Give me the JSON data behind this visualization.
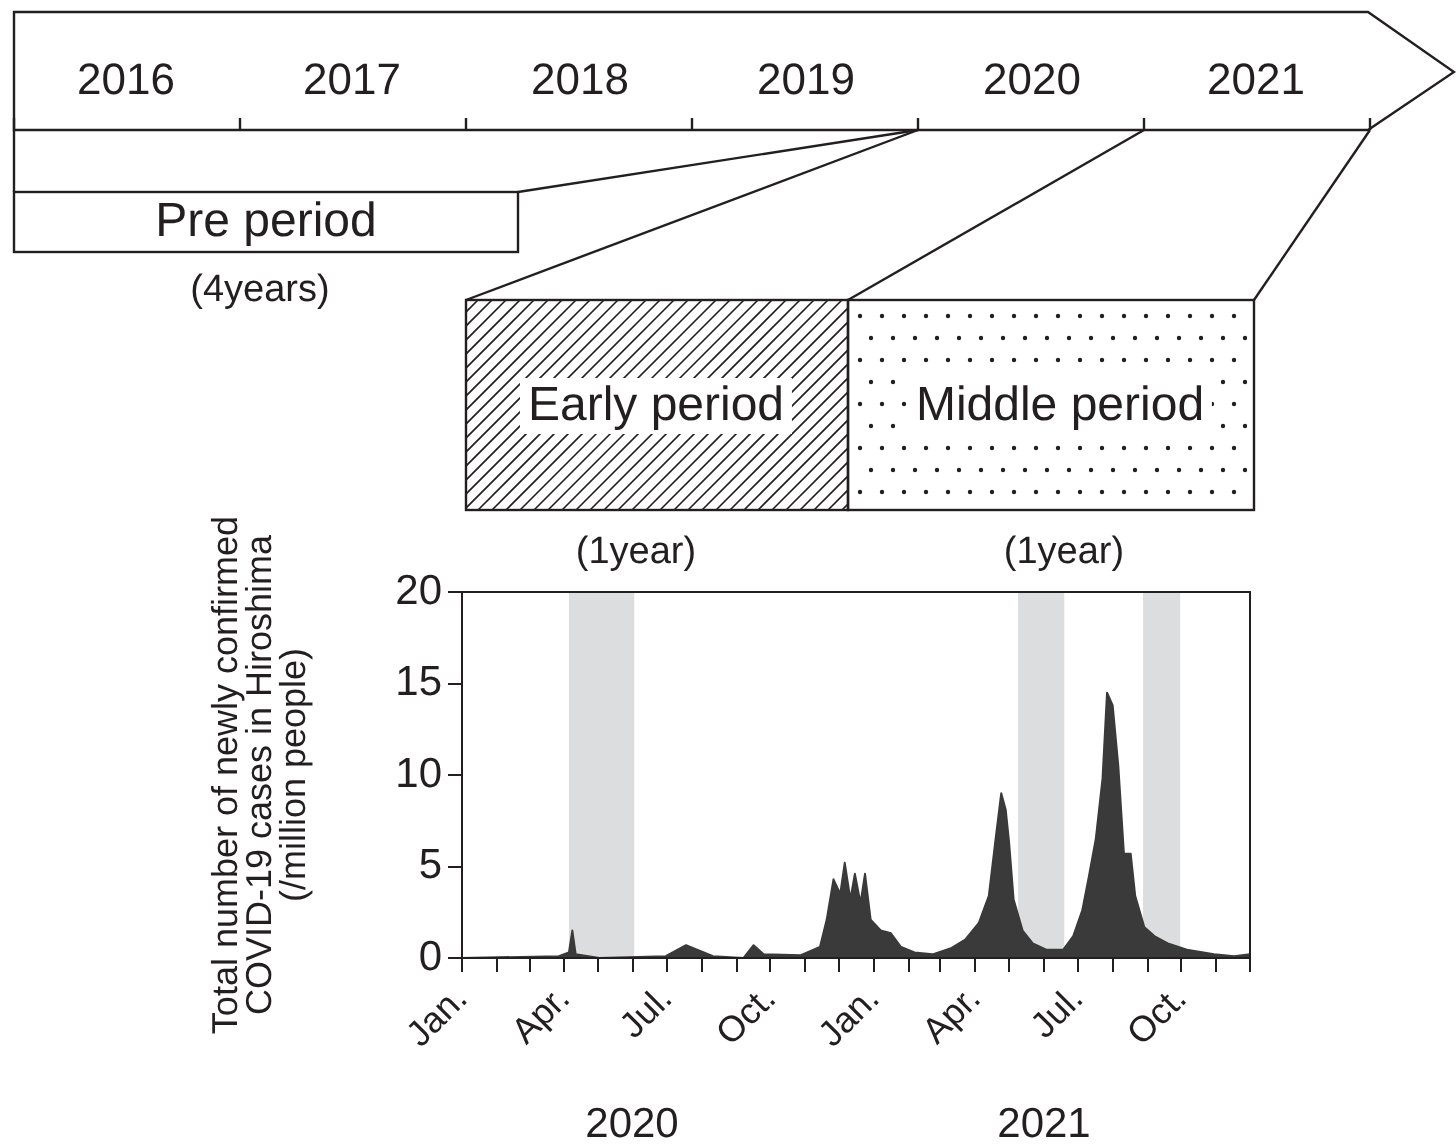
{
  "chart_data": {
    "type": "area",
    "ylabel": "Total number of newly confirmed\nCOVID-19 cases in Hiroshima\n(/million people)",
    "annotations": [
      "2016",
      "2017",
      "2018",
      "2019",
      "2020",
      "2021",
      "Pre period",
      "(4years)",
      "Early period",
      "(1year)",
      "Middle period",
      "(1year)",
      "2020",
      "2021"
    ],
    "x": [
      "2020-01-01",
      "2020-03-27",
      "2020-04-05",
      "2020-04-08",
      "2020-04-11",
      "2020-05-02",
      "2020-06-30",
      "2020-07-18",
      "2020-07-30",
      "2020-08-11",
      "2020-09-07",
      "2020-09-16",
      "2020-09-25",
      "2020-10-28",
      "2020-11-14",
      "2020-11-20",
      "2020-11-26",
      "2020-12-02",
      "2020-12-06",
      "2020-12-11",
      "2020-12-15",
      "2020-12-20",
      "2020-12-24",
      "2020-12-29",
      "2021-01-07",
      "2021-01-16",
      "2021-01-25",
      "2021-02-06",
      "2021-02-22",
      "2021-03-11",
      "2021-03-23",
      "2021-04-04",
      "2021-04-13",
      "2021-04-19",
      "2021-04-24",
      "2021-04-28",
      "2021-05-01",
      "2021-05-05",
      "2021-05-13",
      "2021-05-22",
      "2021-06-03",
      "2021-06-18",
      "2021-06-27",
      "2021-07-05",
      "2021-07-11",
      "2021-07-17",
      "2021-07-23",
      "2021-07-27",
      "2021-08-01",
      "2021-08-06",
      "2021-08-11",
      "2021-08-17",
      "2021-08-21",
      "2021-08-29",
      "2021-09-07",
      "2021-09-19",
      "2021-10-06",
      "2021-10-30",
      "2021-11-17",
      "2021-12-01"
    ],
    "series": [
      {
        "color": "#3a3a3a",
        "values": [
          0,
          0.1,
          0.3,
          1.5,
          0.2,
          0,
          0.1,
          0.7,
          0.4,
          0.1,
          0,
          0.7,
          0.2,
          0.15,
          0.6,
          2.1,
          4.3,
          3.5,
          5.2,
          3.2,
          4.6,
          3.0,
          4.6,
          2.1,
          1.5,
          1.35,
          0.6,
          0.3,
          0.2,
          0.55,
          1.0,
          1.9,
          3.4,
          6.5,
          9.0,
          8.1,
          6.3,
          3.2,
          1.5,
          0.8,
          0.45,
          0.45,
          1.2,
          2.6,
          4.5,
          6.5,
          9.8,
          14.5,
          13.8,
          10.5,
          5.7,
          5.7,
          3.4,
          1.7,
          1.2,
          0.8,
          0.45,
          0.2,
          0.1,
          0.2
        ]
      }
    ],
    "xlim": [
      "2020-01-01",
      "2021-12-01"
    ],
    "xticks": [
      {
        "value": "2020-01",
        "label": "Jan."
      },
      {
        "value": "2020-02",
        "label": null
      },
      {
        "value": "2020-03",
        "label": null
      },
      {
        "value": "2020-04",
        "label": "Apr."
      },
      {
        "value": "2020-05",
        "label": null
      },
      {
        "value": "2020-06",
        "label": null
      },
      {
        "value": "2020-07",
        "label": "Jul."
      },
      {
        "value": "2020-08",
        "label": null
      },
      {
        "value": "2020-09",
        "label": null
      },
      {
        "value": "2020-10",
        "label": "Oct."
      },
      {
        "value": "2020-11",
        "label": null
      },
      {
        "value": "2020-12",
        "label": null
      },
      {
        "value": "2021-01",
        "label": "Jan."
      },
      {
        "value": "2021-02",
        "label": null
      },
      {
        "value": "2021-03",
        "label": null
      },
      {
        "value": "2021-04",
        "label": "Apr."
      },
      {
        "value": "2021-05",
        "label": null
      },
      {
        "value": "2021-06",
        "label": null
      },
      {
        "value": "2021-07",
        "label": "Jul."
      },
      {
        "value": "2021-08",
        "label": null
      },
      {
        "value": "2021-09",
        "label": null
      },
      {
        "value": "2021-10",
        "label": "Oct."
      },
      {
        "value": "2021-11",
        "label": null
      },
      {
        "value": "2021-12",
        "label": null
      }
    ],
    "ylim": [
      0,
      20
    ],
    "yticks": [
      0,
      5,
      10,
      15,
      20
    ],
    "bands": [
      {
        "axis": "x",
        "from": "2020-04-05",
        "to": "2020-06-02",
        "color": "#dcdddf"
      },
      {
        "axis": "x",
        "from": "2021-05-09",
        "to": "2021-06-19",
        "color": "#dcdddf"
      },
      {
        "axis": "x",
        "from": "2021-08-28",
        "to": "2021-09-30",
        "color": "#dcdddf"
      }
    ],
    "grid": false
  }
}
